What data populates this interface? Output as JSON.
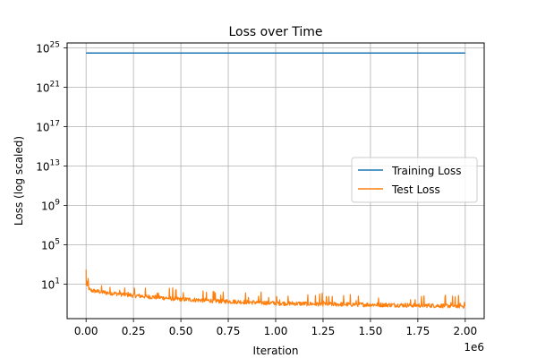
{
  "chart_data": {
    "type": "line",
    "title": "Loss over Time",
    "xlabel": "Iteration",
    "ylabel": "Loss (log scaled)",
    "x_offset_label": "1e6",
    "yscale": "log",
    "grid": true,
    "legend_position": "center-right",
    "xlim": [
      -0.1,
      2.1
    ],
    "ylim_exponent": [
      -2.5,
      25.5
    ],
    "x_ticks": [
      0.0,
      0.25,
      0.5,
      0.75,
      1.0,
      1.25,
      1.5,
      1.75,
      2.0
    ],
    "x_tick_labels": [
      "0.00",
      "0.25",
      "0.50",
      "0.75",
      "1.00",
      "1.25",
      "1.50",
      "1.75",
      "2.00"
    ],
    "y_tick_exponents": [
      1,
      5,
      9,
      13,
      17,
      21,
      25
    ],
    "y_tick_labels": [
      {
        "base": "10",
        "exp": "1"
      },
      {
        "base": "10",
        "exp": "5"
      },
      {
        "base": "10",
        "exp": "9"
      },
      {
        "base": "10",
        "exp": "13"
      },
      {
        "base": "10",
        "exp": "17"
      },
      {
        "base": "10",
        "exp": "21"
      },
      {
        "base": "10",
        "exp": "25"
      }
    ],
    "series": [
      {
        "name": "Training Loss",
        "color": "#1f77b4",
        "x": [
          0.0,
          2.0
        ],
        "y": [
          3e+24,
          3e+24
        ]
      },
      {
        "name": "Test Loss",
        "color": "#ff7f0e",
        "x": [
          0.0,
          0.005,
          0.02,
          0.1,
          0.25,
          0.5,
          0.75,
          1.0,
          1.25,
          1.5,
          1.75,
          2.0
        ],
        "y": [
          300,
          8,
          2,
          1.2,
          0.6,
          0.25,
          0.15,
          0.1,
          0.08,
          0.07,
          0.06,
          0.05
        ],
        "noise_spikes": true
      }
    ]
  }
}
